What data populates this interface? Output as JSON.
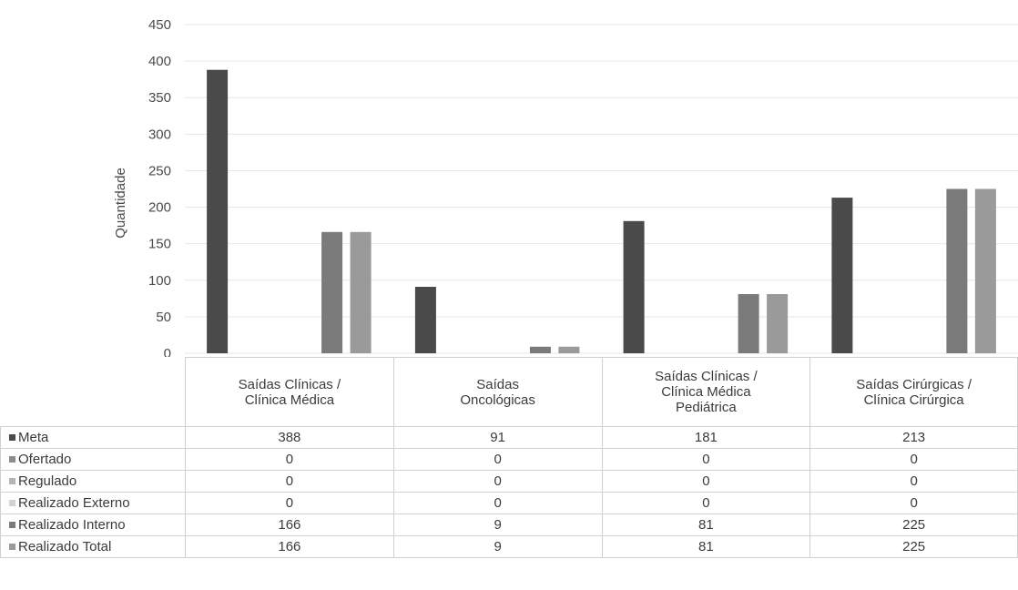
{
  "chart_data": {
    "type": "bar",
    "title": "",
    "xlabel": "",
    "ylabel": "Quantidade",
    "ylim": [
      0,
      450
    ],
    "yticks": [
      0,
      50,
      100,
      150,
      200,
      250,
      300,
      350,
      400,
      450
    ],
    "grid": true,
    "legend": "data-table-left",
    "categories": [
      [
        "Saídas Clínicas /",
        "Clínica Médica"
      ],
      [
        "Saídas",
        "Oncológicas"
      ],
      [
        "Saídas Clínicas /",
        "Clínica Médica",
        "Pediátrica"
      ],
      [
        "Saídas Cirúrgicas /",
        "Clínica Cirúrgica"
      ]
    ],
    "series": [
      {
        "name": "Meta",
        "color": "#4a4a4a",
        "values": [
          388,
          91,
          181,
          213
        ]
      },
      {
        "name": "Ofertado",
        "color": "#8c8c8c",
        "values": [
          0,
          0,
          0,
          0
        ]
      },
      {
        "name": "Regulado",
        "color": "#b4b4b4",
        "values": [
          0,
          0,
          0,
          0
        ]
      },
      {
        "name": "Realizado Externo",
        "color": "#d2d2d2",
        "values": [
          0,
          0,
          0,
          0
        ]
      },
      {
        "name": "Realizado Interno",
        "color": "#7a7a7a",
        "values": [
          166,
          9,
          81,
          225
        ]
      },
      {
        "name": "Realizado Total",
        "color": "#9a9a9a",
        "values": [
          166,
          9,
          81,
          225
        ]
      }
    ]
  }
}
